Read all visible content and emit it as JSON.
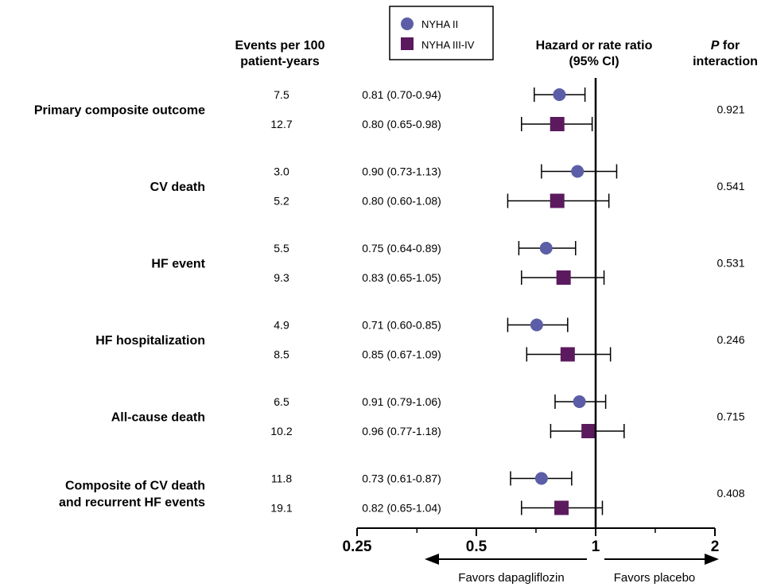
{
  "chart_data": {
    "type": "forest",
    "x_scale": "log2",
    "xlim": [
      0.25,
      2
    ],
    "x_ticks": [
      0.25,
      0.5,
      1,
      2
    ],
    "x_tick_labels": [
      "0.25",
      "0.5",
      "1",
      "2"
    ],
    "x_minor_ticks": [
      0.354,
      0.707,
      1.414
    ],
    "reference_line": 1,
    "legend": {
      "position": "top-center",
      "entries": [
        {
          "label": "NYHA II",
          "marker": "circle",
          "color": "#5b5ea6"
        },
        {
          "label": "NYHA III-IV",
          "marker": "square",
          "color": "#5c1a5e"
        }
      ]
    },
    "headers": {
      "events_line1": "Events per 100",
      "events_line2": "patient-years",
      "ratio_line1": "Hazard or rate ratio",
      "ratio_line2": "(95% CI)",
      "p_line1_italic": "P",
      "p_line1_rest": " for",
      "p_line2": "interaction"
    },
    "favors_left": "Favors dapagliflozin",
    "favors_right": "Favors placebo",
    "outcomes": [
      {
        "label_lines": [
          "Primary composite outcome"
        ],
        "p_interaction": "0.921",
        "rows": [
          {
            "group": "NYHA II",
            "events": "7.5",
            "ci_text": "0.81 (0.70-0.94)",
            "estimate": 0.81,
            "lower": 0.7,
            "upper": 0.94
          },
          {
            "group": "NYHA III-IV",
            "events": "12.7",
            "ci_text": "0.80 (0.65-0.98)",
            "estimate": 0.8,
            "lower": 0.65,
            "upper": 0.98
          }
        ]
      },
      {
        "label_lines": [
          "CV death"
        ],
        "p_interaction": "0.541",
        "rows": [
          {
            "group": "NYHA II",
            "events": "3.0",
            "ci_text": "0.90 (0.73-1.13)",
            "estimate": 0.9,
            "lower": 0.73,
            "upper": 1.13
          },
          {
            "group": "NYHA III-IV",
            "events": "5.2",
            "ci_text": "0.80 (0.60-1.08)",
            "estimate": 0.8,
            "lower": 0.6,
            "upper": 1.08
          }
        ]
      },
      {
        "label_lines": [
          "HF event"
        ],
        "p_interaction": "0.531",
        "rows": [
          {
            "group": "NYHA II",
            "events": "5.5",
            "ci_text": "0.75 (0.64-0.89)",
            "estimate": 0.75,
            "lower": 0.64,
            "upper": 0.89
          },
          {
            "group": "NYHA III-IV",
            "events": "9.3",
            "ci_text": "0.83 (0.65-1.05)",
            "estimate": 0.83,
            "lower": 0.65,
            "upper": 1.05
          }
        ]
      },
      {
        "label_lines": [
          "HF hospitalization"
        ],
        "p_interaction": "0.246",
        "rows": [
          {
            "group": "NYHA II",
            "events": "4.9",
            "ci_text": "0.71 (0.60-0.85)",
            "estimate": 0.71,
            "lower": 0.6,
            "upper": 0.85
          },
          {
            "group": "NYHA III-IV",
            "events": "8.5",
            "ci_text": "0.85 (0.67-1.09)",
            "estimate": 0.85,
            "lower": 0.67,
            "upper": 1.09
          }
        ]
      },
      {
        "label_lines": [
          "All-cause death"
        ],
        "p_interaction": "0.715",
        "rows": [
          {
            "group": "NYHA II",
            "events": "6.5",
            "ci_text": "0.91 (0.79-1.06)",
            "estimate": 0.91,
            "lower": 0.79,
            "upper": 1.06
          },
          {
            "group": "NYHA III-IV",
            "events": "10.2",
            "ci_text": "0.96 (0.77-1.18)",
            "estimate": 0.96,
            "lower": 0.77,
            "upper": 1.18
          }
        ]
      },
      {
        "label_lines": [
          "Composite of CV death",
          "and recurrent HF events"
        ],
        "p_interaction": "0.408",
        "rows": [
          {
            "group": "NYHA II",
            "events": "11.8",
            "ci_text": "0.73 (0.61-0.87)",
            "estimate": 0.73,
            "lower": 0.61,
            "upper": 0.87
          },
          {
            "group": "NYHA III-IV",
            "events": "19.1",
            "ci_text": "0.82 (0.65-1.04)",
            "estimate": 0.82,
            "lower": 0.65,
            "upper": 1.04
          }
        ]
      }
    ]
  }
}
